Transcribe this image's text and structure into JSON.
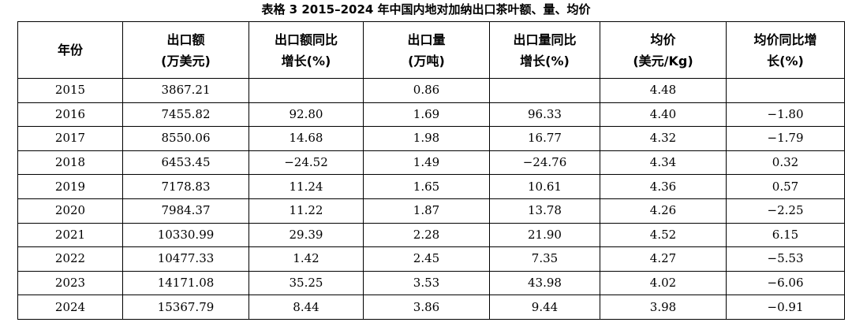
{
  "title": "表格 3 2015–2024 年中国内地对加纳出口茶叶额、量、均价",
  "table": {
    "headers": [
      [
        "年份"
      ],
      [
        "出口额",
        "(万美元)"
      ],
      [
        "出口额同比",
        "增长(%)"
      ],
      [
        "出口量",
        "(万吨)"
      ],
      [
        "出口量同比",
        "增长(%)"
      ],
      [
        "均价",
        "(美元/Kg)"
      ],
      [
        "均价同比增",
        "长(%)"
      ]
    ],
    "rows": [
      [
        "2015",
        "3867.21",
        null,
        "0.86",
        null,
        "4.48",
        null
      ],
      [
        "2016",
        "7455.82",
        "92.80",
        "1.69",
        "96.33",
        "4.40",
        "−1.80"
      ],
      [
        "2017",
        "8550.06",
        "14.68",
        "1.98",
        "16.77",
        "4.32",
        "−1.79"
      ],
      [
        "2018",
        "6453.45",
        "−24.52",
        "1.49",
        "−24.76",
        "4.34",
        "0.32"
      ],
      [
        "2019",
        "7178.83",
        "11.24",
        "1.65",
        "10.61",
        "4.36",
        "0.57"
      ],
      [
        "2020",
        "7984.37",
        "11.22",
        "1.87",
        "13.78",
        "4.26",
        "−2.25"
      ],
      [
        "2021",
        "10330.99",
        "29.39",
        "2.28",
        "21.90",
        "4.52",
        "6.15"
      ],
      [
        "2022",
        "10477.33",
        "1.42",
        "2.45",
        "7.35",
        "4.27",
        "−5.53"
      ],
      [
        "2023",
        "14171.08",
        "35.25",
        "3.53",
        "43.98",
        "4.02",
        "−6.06"
      ],
      [
        "2024",
        "15367.79",
        "8.44",
        "3.86",
        "9.44",
        "3.98",
        "−0.91"
      ]
    ]
  }
}
